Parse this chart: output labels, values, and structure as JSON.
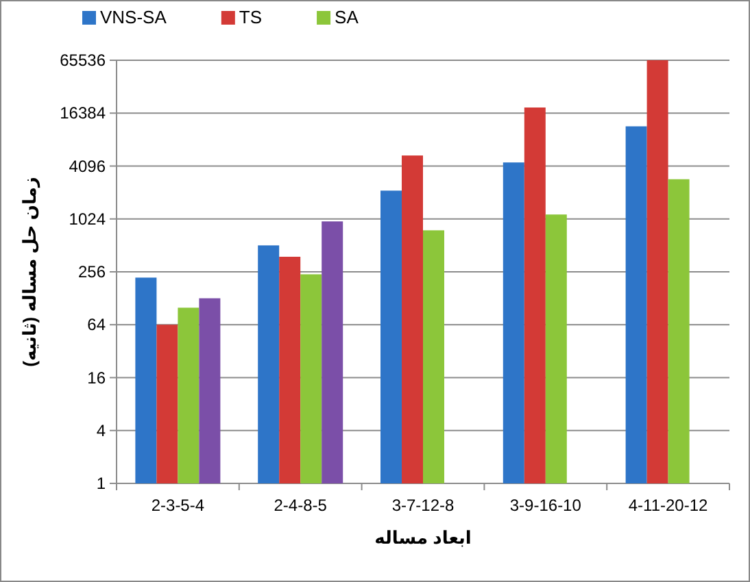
{
  "chart_data": {
    "type": "bar",
    "xlabel": "ابعاد مساله",
    "ylabel": "زمان حل مساله (ثانیه)",
    "categories": [
      "2-3-5-4",
      "2-4-8-5",
      "3-7-12-8",
      "3-9-16-10",
      "4-11-20-12"
    ],
    "series": [
      {
        "name": "VNS-SA",
        "color": "#2e75c8",
        "values": [
          220,
          512,
          2150,
          4500,
          11600
        ]
      },
      {
        "name": "TS",
        "color": "#d33a36",
        "values": [
          64,
          380,
          5400,
          19000,
          65536
        ]
      },
      {
        "name": "SA",
        "color": "#8cc63a",
        "values": [
          100,
          240,
          760,
          1150,
          2900
        ]
      },
      {
        "color": "#7b4fa8",
        "values": [
          128,
          960,
          null,
          null,
          null
        ]
      }
    ],
    "log": "y",
    "ylim": [
      1,
      65536
    ],
    "yticks": [
      1,
      4,
      16,
      64,
      256,
      1024,
      4096,
      16384,
      65536
    ],
    "grid": "y",
    "legend": "top"
  }
}
